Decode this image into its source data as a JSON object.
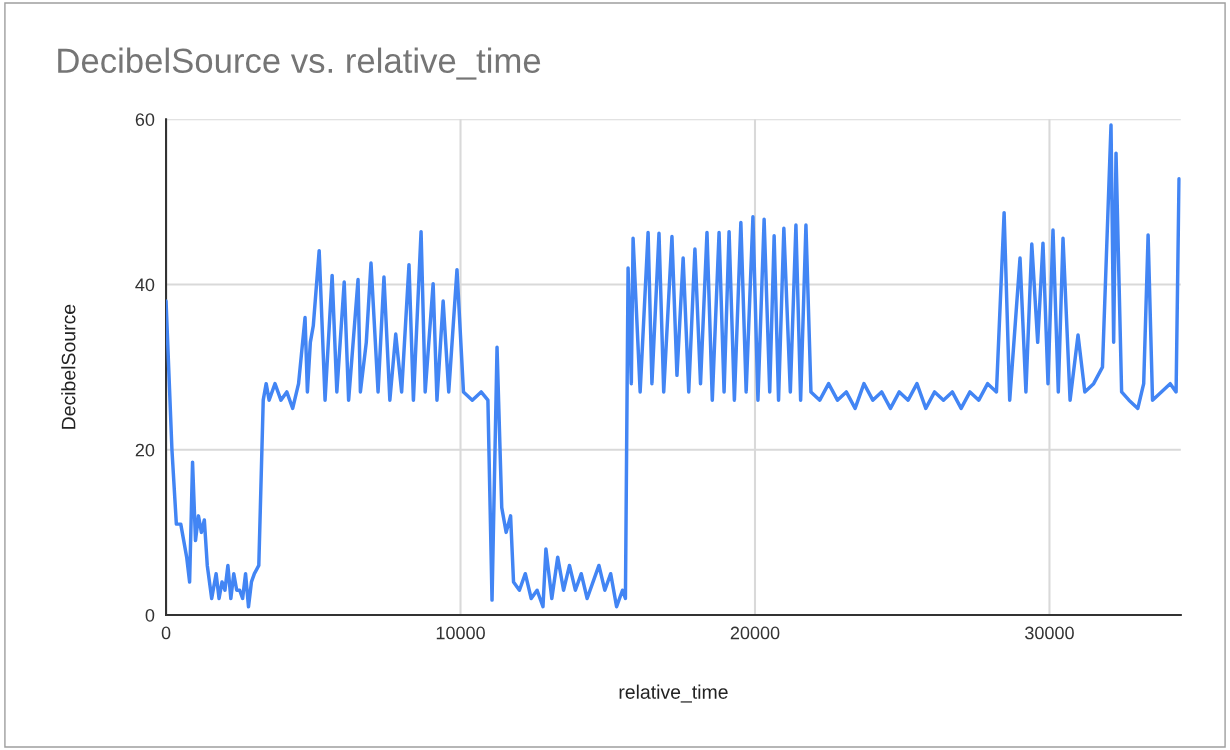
{
  "chart_data": {
    "type": "line",
    "title": "DecibelSource vs. relative_time",
    "xlabel": "relative_time",
    "ylabel": "DecibelSource",
    "xlim": [
      0,
      34460
    ],
    "ylim": [
      0,
      60
    ],
    "xticks": [
      0,
      10000,
      20000,
      30000
    ],
    "yticks": [
      0,
      20,
      40,
      60
    ],
    "grid": true,
    "line_style": "solid",
    "marker": "none",
    "series": [
      {
        "color": "#4285f4",
        "x": [
          0,
          200,
          350,
          500,
          600,
          700,
          800,
          900,
          1000,
          1100,
          1200,
          1300,
          1400,
          1550,
          1700,
          1800,
          1900,
          2000,
          2100,
          2200,
          2300,
          2400,
          2500,
          2600,
          2700,
          2800,
          2900,
          3000,
          3150,
          3300,
          3400,
          3500,
          3700,
          3900,
          4100,
          4300,
          4500,
          4720,
          4800,
          4900,
          5000,
          5200,
          5400,
          5640,
          5800,
          6050,
          6200,
          6520,
          6600,
          6800,
          6960,
          7200,
          7400,
          7600,
          7800,
          8000,
          8250,
          8400,
          8660,
          8800,
          9070,
          9200,
          9410,
          9600,
          9880,
          10100,
          10400,
          10700,
          10930,
          11070,
          11240,
          11400,
          11550,
          11700,
          11800,
          12000,
          12200,
          12400,
          12600,
          12800,
          12900,
          13100,
          13300,
          13500,
          13700,
          13900,
          14100,
          14300,
          14500,
          14700,
          14900,
          15100,
          15300,
          15500,
          15600,
          15690,
          15800,
          15860,
          16100,
          16370,
          16500,
          16740,
          16900,
          17180,
          17350,
          17560,
          17750,
          17960,
          18150,
          18370,
          18550,
          18780,
          18950,
          19120,
          19300,
          19520,
          19700,
          19930,
          20100,
          20310,
          20500,
          20650,
          20800,
          20980,
          21200,
          21390,
          21550,
          21730,
          21900,
          22200,
          22500,
          22800,
          23100,
          23400,
          23700,
          24000,
          24300,
          24600,
          24900,
          25200,
          25500,
          25800,
          26100,
          26400,
          26700,
          27000,
          27300,
          27600,
          27900,
          28200,
          28460,
          28650,
          29000,
          29200,
          29400,
          29600,
          29780,
          29950,
          30120,
          30300,
          30460,
          30700,
          30970,
          31200,
          31500,
          31800,
          32090,
          32180,
          32260,
          32450,
          32700,
          33000,
          33200,
          33350,
          33500,
          33800,
          34100,
          34300,
          34400
        ],
        "values": [
          38,
          20,
          11,
          11,
          9,
          7,
          4,
          18.5,
          9,
          12,
          10,
          11.5,
          6,
          2,
          5,
          2,
          4,
          3,
          6,
          2,
          5,
          3,
          3,
          2,
          5,
          1,
          4,
          5,
          6,
          26,
          28,
          26,
          28,
          26,
          27,
          25,
          28,
          36,
          27,
          33,
          35,
          44.1,
          26,
          41.1,
          27,
          40.3,
          26,
          40.6,
          27,
          33,
          42.6,
          27,
          40.9,
          26,
          34,
          27,
          42.4,
          26,
          46.4,
          27,
          40.1,
          26,
          38,
          27,
          41.8,
          27,
          26,
          27,
          26,
          1.8,
          32.4,
          13,
          10,
          12,
          4,
          3,
          5,
          2,
          3,
          1,
          8,
          2,
          7,
          3,
          6,
          3,
          5,
          2,
          4,
          6,
          3,
          5,
          1,
          3,
          2,
          42,
          28,
          45.6,
          27,
          46.3,
          28,
          46.2,
          27,
          45.8,
          29,
          43.2,
          27,
          44.3,
          28,
          46.3,
          26,
          46.3,
          27,
          46.4,
          26,
          47.5,
          27,
          48.2,
          26,
          47.9,
          27,
          45.9,
          26,
          46.8,
          27,
          47.2,
          26,
          47.2,
          27,
          26,
          28,
          26,
          27,
          25,
          28,
          26,
          27,
          25,
          27,
          26,
          28,
          25,
          27,
          26,
          27,
          25,
          27,
          26,
          28,
          27,
          48.7,
          26,
          43.2,
          27,
          44.9,
          33,
          45,
          28,
          46.6,
          27,
          45.6,
          26,
          33.9,
          27,
          28,
          30,
          59.3,
          33,
          55.9,
          27,
          26,
          25,
          28,
          46,
          26,
          27,
          28,
          27,
          52.8
        ]
      }
    ]
  }
}
